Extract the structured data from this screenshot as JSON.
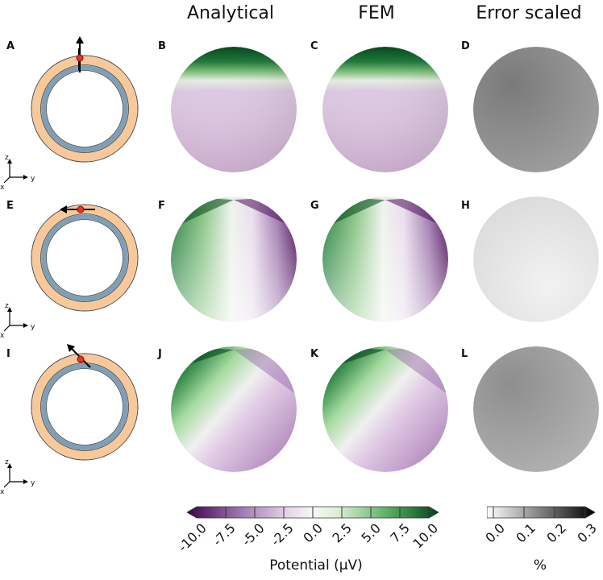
{
  "columns": {
    "analytical": "Analytical",
    "fem": "FEM",
    "error": "Error scaled"
  },
  "panel_labels": [
    "A",
    "B",
    "C",
    "D",
    "E",
    "F",
    "G",
    "H",
    "I",
    "J",
    "K",
    "L"
  ],
  "axis_labels": {
    "z": "z",
    "y": "y",
    "x": "x"
  },
  "colorbars": {
    "potential": {
      "label": "Potential (μV)",
      "ticks": [
        "-10.0",
        "-7.5",
        "-5.0",
        "-2.5",
        "0.0",
        "2.5",
        "5.0",
        "7.5",
        "10.0"
      ],
      "range": [
        -10,
        10
      ],
      "colors": [
        "#40004b",
        "#9970ab",
        "#e7d4e8",
        "#f7f7f7",
        "#d9f0d3",
        "#5aae61",
        "#00441b"
      ]
    },
    "error": {
      "label": "%",
      "ticks": [
        "0.0",
        "0.1",
        "0.2",
        "0.3"
      ],
      "range": [
        0,
        0.3
      ],
      "colors": [
        "#ffffff",
        "#000000"
      ]
    }
  },
  "dipole_orientations": [
    "radial",
    "tangential",
    "oblique"
  ],
  "colors": {
    "scalp": "#f7c99a",
    "skull": "#7f9fb7",
    "dipole": "#e8322a"
  }
}
